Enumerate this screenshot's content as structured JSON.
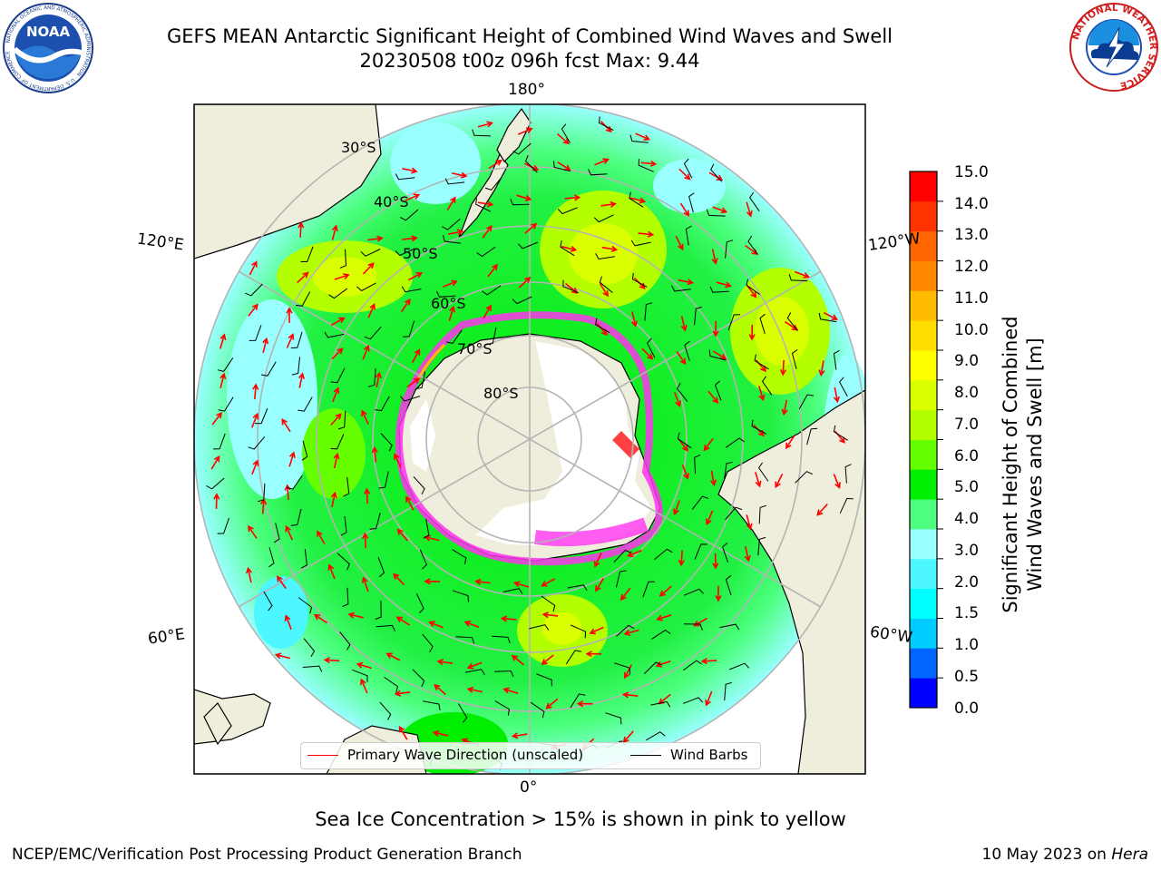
{
  "header": {
    "title_line1": "GEFS MEAN Antarctic Significant Height of Combined Wind Waves and Swell",
    "title_line2": "20230508 t00z 096h fcst   Max: 9.44"
  },
  "logos": {
    "left": {
      "name": "NOAA",
      "text": "NOAA",
      "ring_text": "NATIONAL OCEANIC AND ATMOSPHERIC ADMINISTRATION · U.S. DEPARTMENT OF COMMERCE"
    },
    "right": {
      "name": "National Weather Service",
      "ring_text": "NATIONAL WEATHER SERVICE"
    }
  },
  "map": {
    "projection": "south polar stereographic",
    "longitude_labels": {
      "top": "180°",
      "bottom": "0°",
      "left_upper": "120°E",
      "left_lower": "60°E",
      "right_upper": "120°W",
      "right_lower": "60°W"
    },
    "latitude_labels": [
      "30°S",
      "40°S",
      "50°S",
      "60°S",
      "70°S",
      "80°S"
    ]
  },
  "colorbar": {
    "label": "Significant Height of Combined Wind Waves and Swell [m]",
    "label_line1": "Significant Height of Combined",
    "label_line2": "Wind Waves and Swell [m]",
    "ticks": [
      "15.0",
      "14.0",
      "13.0",
      "12.0",
      "11.0",
      "10.0",
      "9.0",
      "8.0",
      "7.0",
      "6.0",
      "5.0",
      "4.0",
      "3.0",
      "2.0",
      "1.5",
      "1.0",
      "0.5",
      "0.0"
    ],
    "colors": [
      "#0000ff",
      "#0066ff",
      "#00ccff",
      "#00ffff",
      "#4df7ff",
      "#99ffff",
      "#4cff7e",
      "#00ee00",
      "#66ff00",
      "#b3ff00",
      "#d9ff00",
      "#ffff00",
      "#ffdd00",
      "#ffbb00",
      "#ff8800",
      "#ff6600",
      "#ff3300",
      "#ff0000"
    ]
  },
  "legend": {
    "items": [
      {
        "label": "Primary Wave Direction (unscaled)",
        "color": "#ff0000"
      },
      {
        "label": "Wind Barbs",
        "color": "#000000"
      }
    ]
  },
  "footer": {
    "note": "Sea Ice Concentration > 15% is shown in pink to yellow",
    "credit_left": "NCEP/EMC/Verification Post Processing Product Generation Branch",
    "credit_right_date": "10 May 2023 on ",
    "credit_right_host": "Hera"
  },
  "colors": {
    "land": "#efeddc",
    "ice": "#ff33ee",
    "arrow": "#ff0000",
    "grid": "#b4b4b4"
  }
}
